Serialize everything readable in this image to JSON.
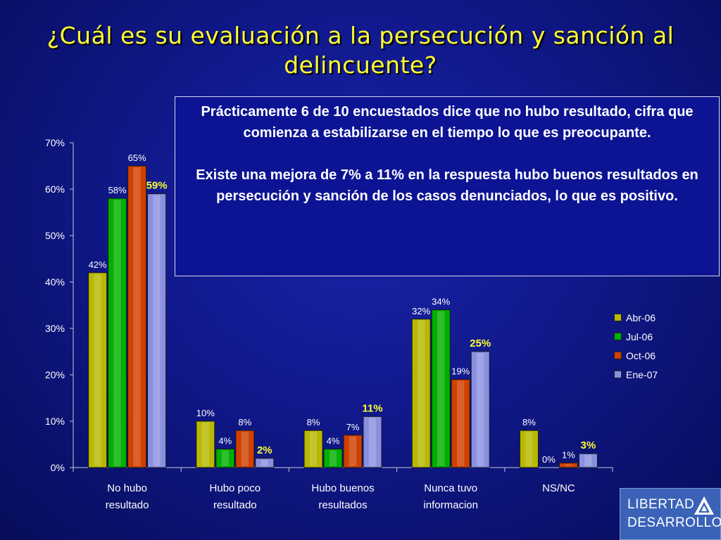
{
  "slide": {
    "title": "¿Cuál es su evaluación a la persecución y sanción al delincuente?",
    "note_p1": "Prácticamente 6 de 10 encuestados dice que no hubo resultado, cifra que comienza a estabilizarse en el tiempo lo que es preocupante.",
    "note_p2": "Existe una mejora de 7% a 11% en la respuesta hubo buenos resultados en persecución y sanción de los casos denunciados, lo que es positivo."
  },
  "logo": {
    "line1": "LIBERTAD",
    "line2": "DESARROLLO"
  },
  "chart_data": {
    "type": "bar",
    "categories": [
      [
        "No hubo",
        "resultado"
      ],
      [
        "Hubo poco",
        "resultado"
      ],
      [
        "Hubo buenos",
        "resultados"
      ],
      [
        "Nunca tuvo",
        "informacion"
      ],
      [
        "NS/NC"
      ]
    ],
    "series": [
      {
        "name": "Abr-06",
        "values": [
          42,
          10,
          8,
          32,
          8
        ],
        "color": "#b8b800"
      },
      {
        "name": "Jul-06",
        "values": [
          58,
          4,
          4,
          34,
          0
        ],
        "color": "#00b000"
      },
      {
        "name": "Oct-06",
        "values": [
          65,
          8,
          7,
          19,
          1
        ],
        "color": "#d04000"
      },
      {
        "name": "Ene-07",
        "values": [
          59,
          2,
          11,
          25,
          3
        ],
        "color": "#8a90e0"
      }
    ],
    "value_suffix": "%",
    "ylim": [
      0,
      70
    ],
    "yticks": [
      "0%",
      "10%",
      "20%",
      "30%",
      "40%",
      "50%",
      "60%",
      "70%"
    ],
    "legend_position": "right",
    "grid": false
  }
}
